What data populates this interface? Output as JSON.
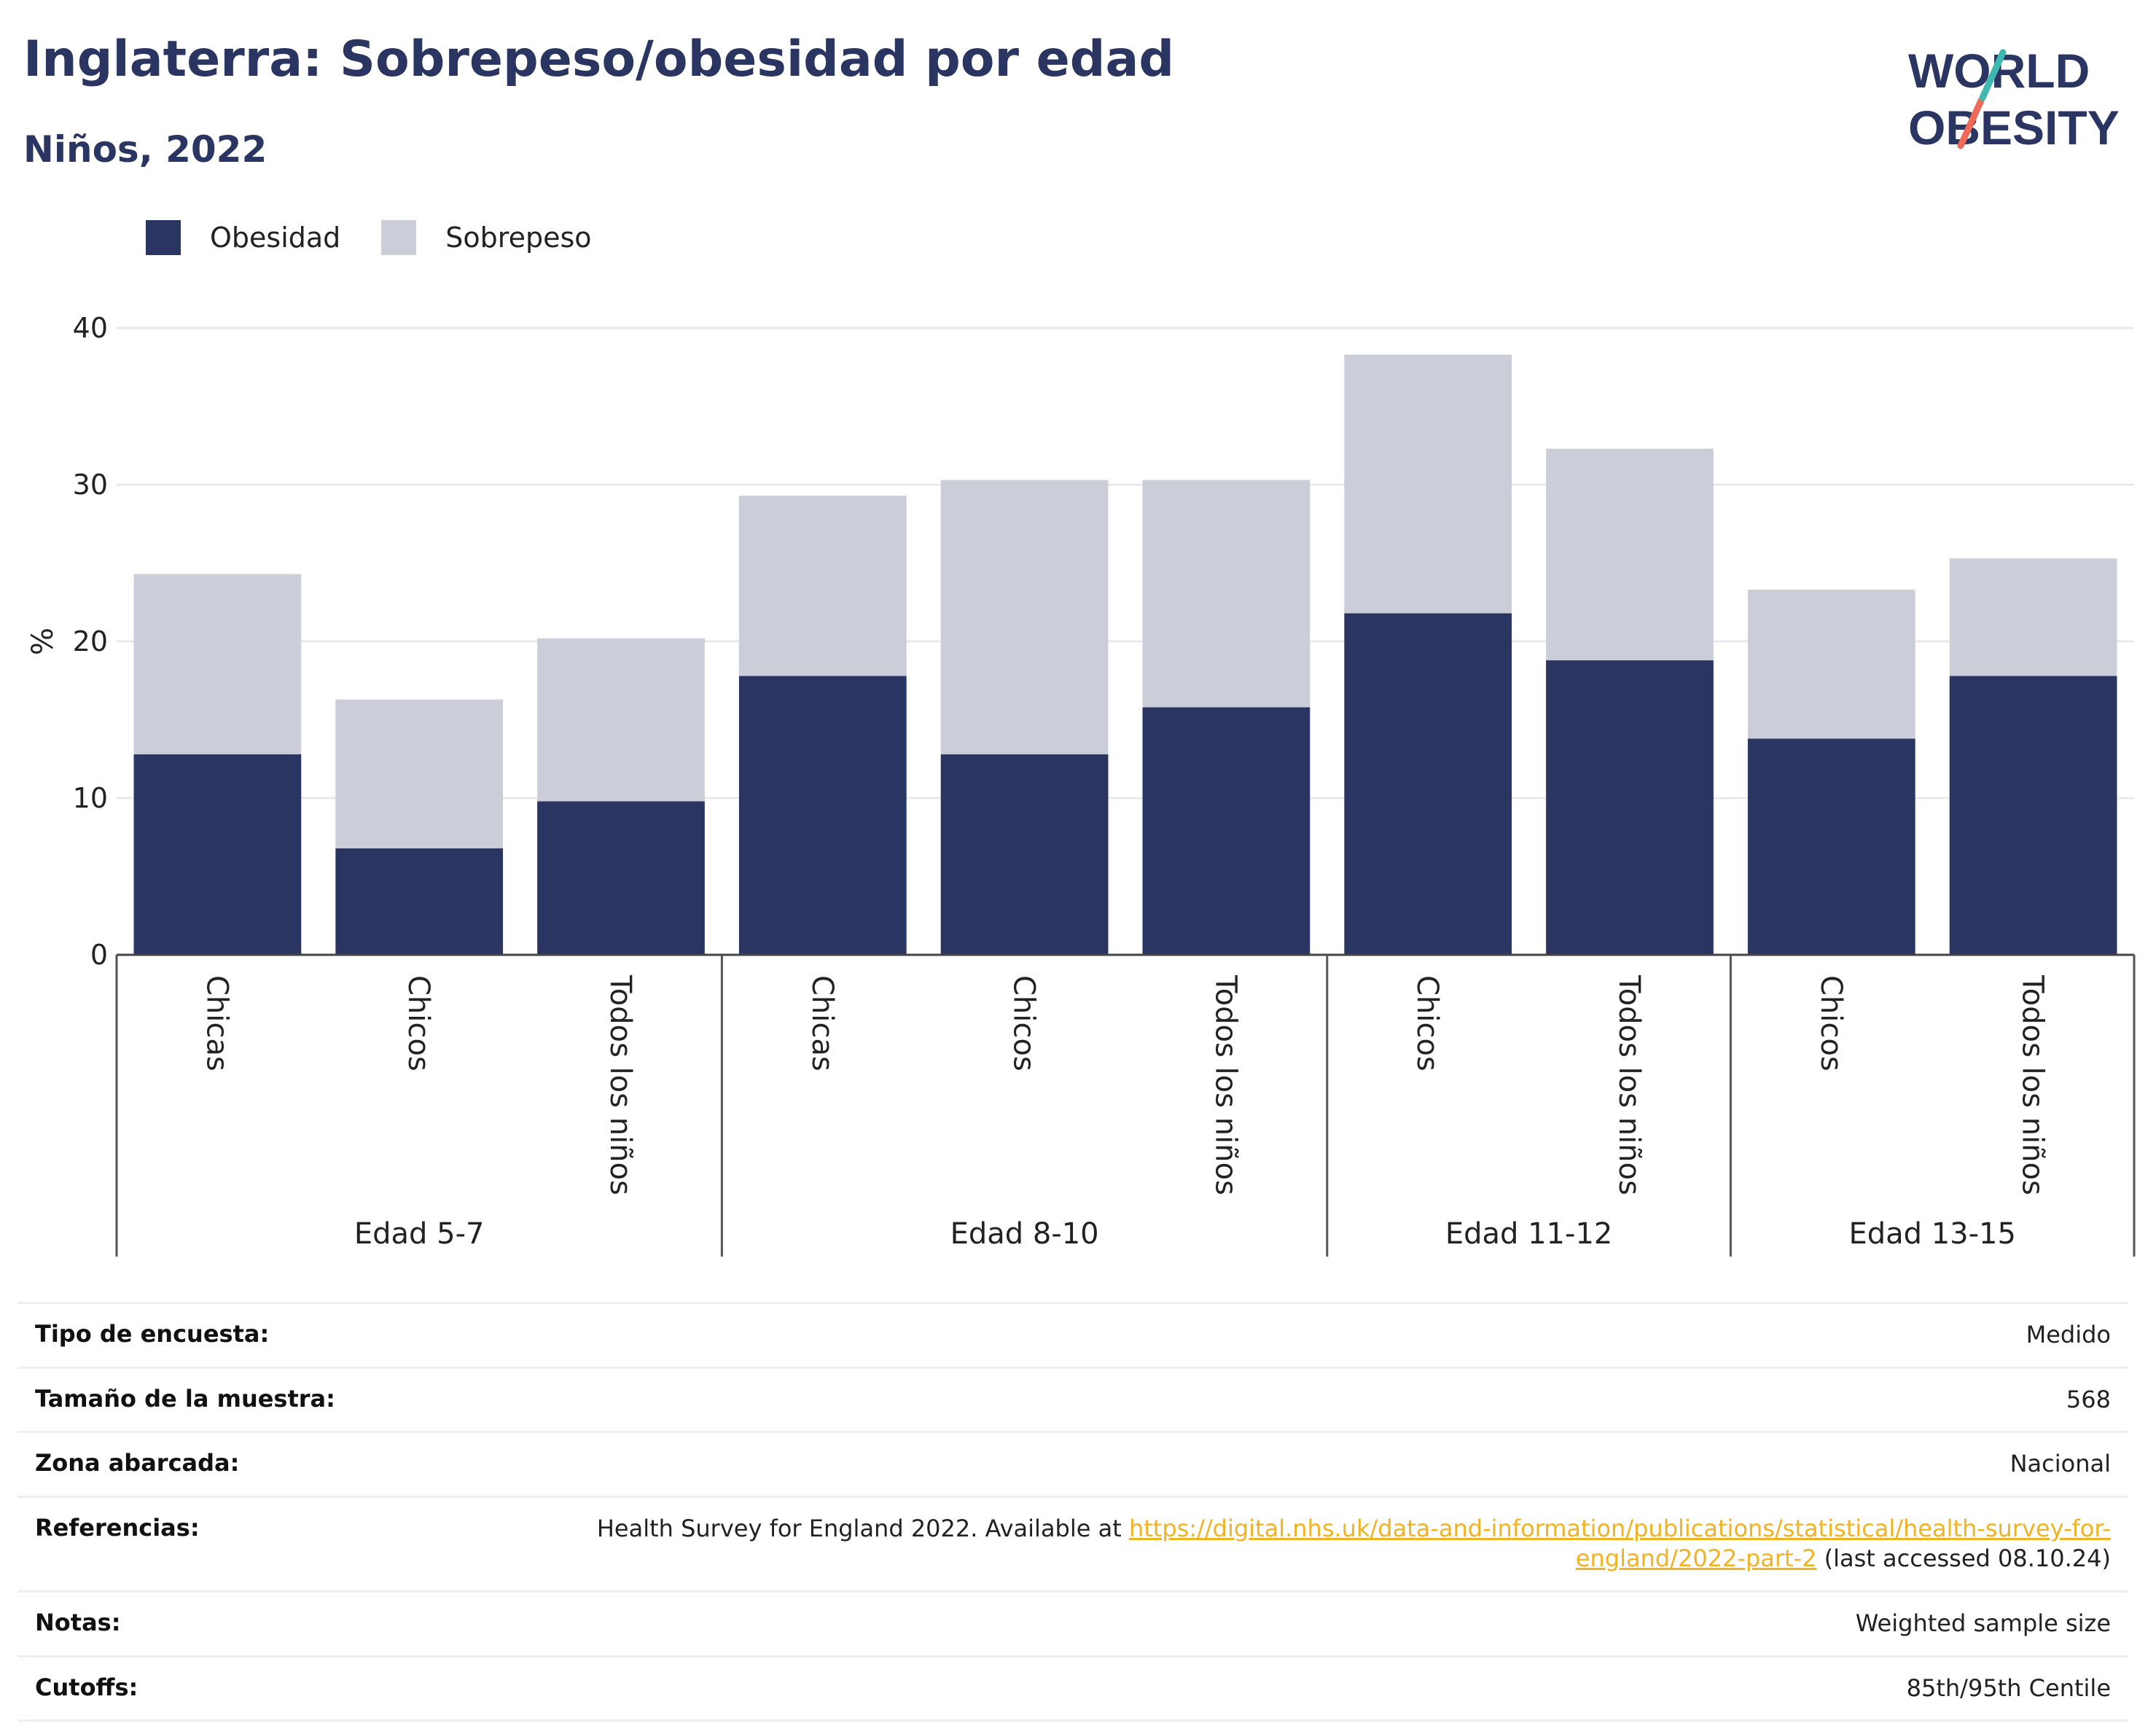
{
  "header": {
    "title": "Inglaterra: Sobrepeso/obesidad por edad",
    "subtitle": "Niños, 2022"
  },
  "logo": {
    "line1": "WORLD",
    "line2": "OBESITY"
  },
  "colors": {
    "obesidad": "#2a3561",
    "sobrepeso": "#cbcdd8",
    "accent_teal": "#3fb9b0",
    "accent_coral": "#ef6a5a",
    "link": "#f0b323"
  },
  "chart_data": {
    "type": "bar",
    "stacked": true,
    "title": "Inglaterra: Sobrepeso/obesidad por edad",
    "subtitle": "Niños, 2022",
    "ylabel": "%",
    "ylim": [
      0,
      40
    ],
    "yticks": [
      0,
      10,
      20,
      30,
      40
    ],
    "grid": true,
    "legend_position": "top-left",
    "legend": [
      "Obesidad",
      "Sobrepeso"
    ],
    "groups": [
      {
        "label": "Edad 5-7",
        "categories": [
          "Chicas",
          "Chicos",
          "Todos los niños"
        ]
      },
      {
        "label": "Edad 8-10",
        "categories": [
          "Chicas",
          "Chicos",
          "Todos los niños"
        ]
      },
      {
        "label": "Edad 11-12",
        "categories": [
          "Chicos",
          "Todos los niños"
        ]
      },
      {
        "label": "Edad 13-15",
        "categories": [
          "Chicos",
          "Todos los niños"
        ]
      }
    ],
    "series": [
      {
        "name": "Obesidad",
        "values": [
          12.8,
          6.8,
          9.8,
          17.8,
          12.8,
          15.8,
          21.8,
          18.8,
          13.8,
          17.8
        ]
      },
      {
        "name": "Sobrepeso",
        "values": [
          11.5,
          9.5,
          10.4,
          11.5,
          17.5,
          14.5,
          16.5,
          13.5,
          9.5,
          7.5
        ]
      }
    ]
  },
  "info": [
    {
      "label": "Tipo de encuesta:",
      "value": "Medido"
    },
    {
      "label": "Tamaño de la muestra:",
      "value": "568"
    },
    {
      "label": "Zona abarcada:",
      "value": "Nacional"
    },
    {
      "label": "Referencias:",
      "value_prefix": "Health Survey for England 2022. Available at ",
      "link": "https://digital.nhs.uk/data-and-information/publications/statistical/health-survey-for-england/2022-part-2",
      "value_suffix": " (last accessed 08.10.24)"
    },
    {
      "label": "Notas:",
      "value": "Weighted sample size"
    },
    {
      "label": "Cutoffs:",
      "value": "85th/95th Centile"
    }
  ]
}
